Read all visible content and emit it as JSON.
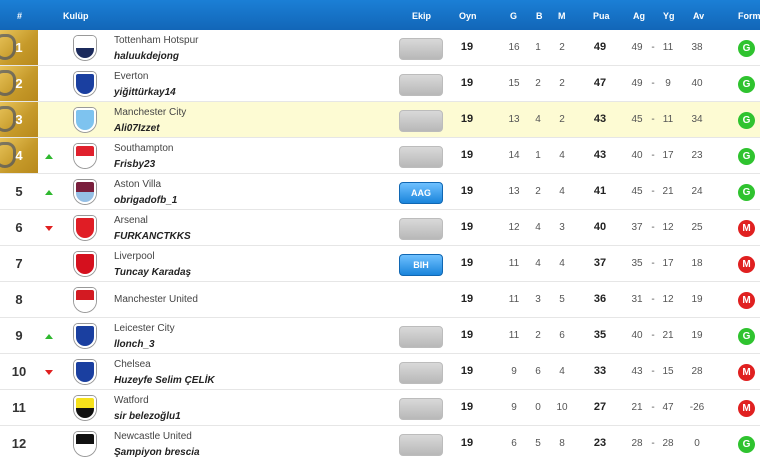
{
  "headers": {
    "rank": "#",
    "club": "Kulüp",
    "badge": "Ekip",
    "played": "Oyn",
    "won": "G",
    "drawn": "B",
    "lost": "M",
    "points": "Pua",
    "gf": "Ag",
    "ga": "Yg",
    "gd": "Av",
    "form": "Form"
  },
  "colors": {
    "header_bg": "#1570c6",
    "highlight_row": "#fdfbd3",
    "gold": "#c69a2a",
    "form_win": "#2fc32f",
    "form_loss": "#e02020",
    "arrow_up": "#2fb82f",
    "arrow_down": "#e02020"
  },
  "rows": [
    {
      "rank": "1",
      "gold": true,
      "trend": "",
      "club": "Tottenham Hotspur",
      "manager": "haluukdejong",
      "badge": "",
      "crest": [
        "#ffffff",
        "#1b2a5c"
      ],
      "played": "19",
      "won": "16",
      "drawn": "1",
      "lost": "2",
      "points": "49",
      "gf": "49",
      "ga": "11",
      "gd": "38",
      "form": "G"
    },
    {
      "rank": "2",
      "gold": true,
      "trend": "",
      "club": "Everton",
      "manager": "yiğittürkay14",
      "badge": "",
      "crest": [
        "#1a3fa0",
        "#1a3fa0"
      ],
      "played": "19",
      "won": "15",
      "drawn": "2",
      "lost": "2",
      "points": "47",
      "gf": "49",
      "ga": "9",
      "gd": "40",
      "form": "G"
    },
    {
      "rank": "3",
      "gold": true,
      "highlight": true,
      "trend": "",
      "club": "Manchester City",
      "manager": "Ali07Izzet",
      "badge": "",
      "crest": [
        "#7ec3ef",
        "#7ec3ef"
      ],
      "played": "19",
      "won": "13",
      "drawn": "4",
      "lost": "2",
      "points": "43",
      "gf": "45",
      "ga": "11",
      "gd": "34",
      "form": "G"
    },
    {
      "rank": "4",
      "gold": true,
      "trend": "up",
      "club": "Southampton",
      "manager": "Frisby23",
      "badge": "",
      "crest": [
        "#e0202c",
        "#ffffff"
      ],
      "played": "19",
      "won": "14",
      "drawn": "1",
      "lost": "4",
      "points": "43",
      "gf": "40",
      "ga": "17",
      "gd": "23",
      "form": "G"
    },
    {
      "rank": "5",
      "gold": false,
      "trend": "up",
      "club": "Aston Villa",
      "manager": "obrigadofb_1",
      "badge": "AAG",
      "crest": [
        "#7a1f3d",
        "#95bfe5"
      ],
      "played": "19",
      "won": "13",
      "drawn": "2",
      "lost": "4",
      "points": "41",
      "gf": "45",
      "ga": "21",
      "gd": "24",
      "form": "G"
    },
    {
      "rank": "6",
      "gold": false,
      "trend": "down",
      "club": "Arsenal",
      "manager": "FURKANCTKKS",
      "badge": "",
      "crest": [
        "#e01d25",
        "#e01d25"
      ],
      "played": "19",
      "won": "12",
      "drawn": "4",
      "lost": "3",
      "points": "40",
      "gf": "37",
      "ga": "12",
      "gd": "25",
      "form": "M"
    },
    {
      "rank": "7",
      "gold": false,
      "trend": "",
      "club": "Liverpool",
      "manager": "Tuncay Karadaş",
      "badge": "BIH",
      "crest": [
        "#d5101e",
        "#d5101e"
      ],
      "played": "19",
      "won": "11",
      "drawn": "4",
      "lost": "4",
      "points": "37",
      "gf": "35",
      "ga": "17",
      "gd": "18",
      "form": "M"
    },
    {
      "rank": "8",
      "gold": false,
      "trend": "",
      "club": "Manchester United",
      "manager": "",
      "badge": null,
      "crest": [
        "#d31a22",
        "#ffffff"
      ],
      "played": "19",
      "won": "11",
      "drawn": "3",
      "lost": "5",
      "points": "36",
      "gf": "31",
      "ga": "12",
      "gd": "19",
      "form": "M"
    },
    {
      "rank": "9",
      "gold": false,
      "trend": "up",
      "club": "Leicester City",
      "manager": "llonch_3",
      "badge": "",
      "crest": [
        "#1a3fa0",
        "#1a3fa0"
      ],
      "played": "19",
      "won": "11",
      "drawn": "2",
      "lost": "6",
      "points": "35",
      "gf": "40",
      "ga": "21",
      "gd": "19",
      "form": "G"
    },
    {
      "rank": "10",
      "gold": false,
      "trend": "down",
      "club": "Chelsea",
      "manager": "Huzeyfe Selim ÇELİK",
      "badge": "",
      "crest": [
        "#1a3fa0",
        "#1a3fa0"
      ],
      "played": "19",
      "won": "9",
      "drawn": "6",
      "lost": "4",
      "points": "33",
      "gf": "43",
      "ga": "15",
      "gd": "28",
      "form": "M"
    },
    {
      "rank": "11",
      "gold": false,
      "trend": "",
      "club": "Watford",
      "manager": "sir belezoğlu1",
      "badge": "",
      "crest": [
        "#f6e11b",
        "#111111"
      ],
      "played": "19",
      "won": "9",
      "drawn": "0",
      "lost": "10",
      "points": "27",
      "gf": "21",
      "ga": "47",
      "gd": "-26",
      "form": "M"
    },
    {
      "rank": "12",
      "gold": false,
      "trend": "",
      "club": "Newcastle United",
      "manager": "Şampiyon brescia",
      "badge": "",
      "crest": [
        "#111111",
        "#ffffff"
      ],
      "played": "19",
      "won": "6",
      "drawn": "5",
      "lost": "8",
      "points": "23",
      "gf": "28",
      "ga": "28",
      "gd": "0",
      "form": "G"
    }
  ]
}
